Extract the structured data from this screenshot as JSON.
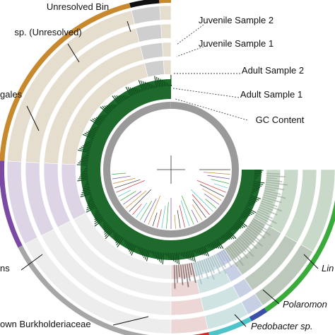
{
  "diagram": {
    "ring_labels": [
      {
        "text": "Juvenile Sample 2"
      },
      {
        "text": "Juvenile Sample 1"
      },
      {
        "text": "Adult Sample 2"
      },
      {
        "text": "Adult Sample 1"
      },
      {
        "text": "GC Content"
      }
    ],
    "bin_labels": [
      {
        "text": "Unresolved Bin",
        "italic": false
      },
      {
        "text": "sp. (Unresolved)",
        "italic": false
      },
      {
        "text": "gales",
        "italic": false
      },
      {
        "text": "ns",
        "italic": false
      },
      {
        "text": "own Burkholderiaceae",
        "italic": false
      },
      {
        "text": "Pedobacter sp.",
        "italic": true
      },
      {
        "text": "Polaromon",
        "italic": true
      },
      {
        "text": "Lin",
        "italic": true
      }
    ],
    "bin_colors": {
      "unresolved_bin": "#111111",
      "orange_bin": "#c8892e",
      "purple_bin": "#7a4aa5",
      "grey_bin": "#a6a6a6",
      "red_bin": "#d12a2a",
      "cyan_bin": "#4fc4c8",
      "blue_bin": "#3c50a8",
      "green_bin": "#3aaa3a"
    },
    "gc_color": "#1d6a2c"
  }
}
